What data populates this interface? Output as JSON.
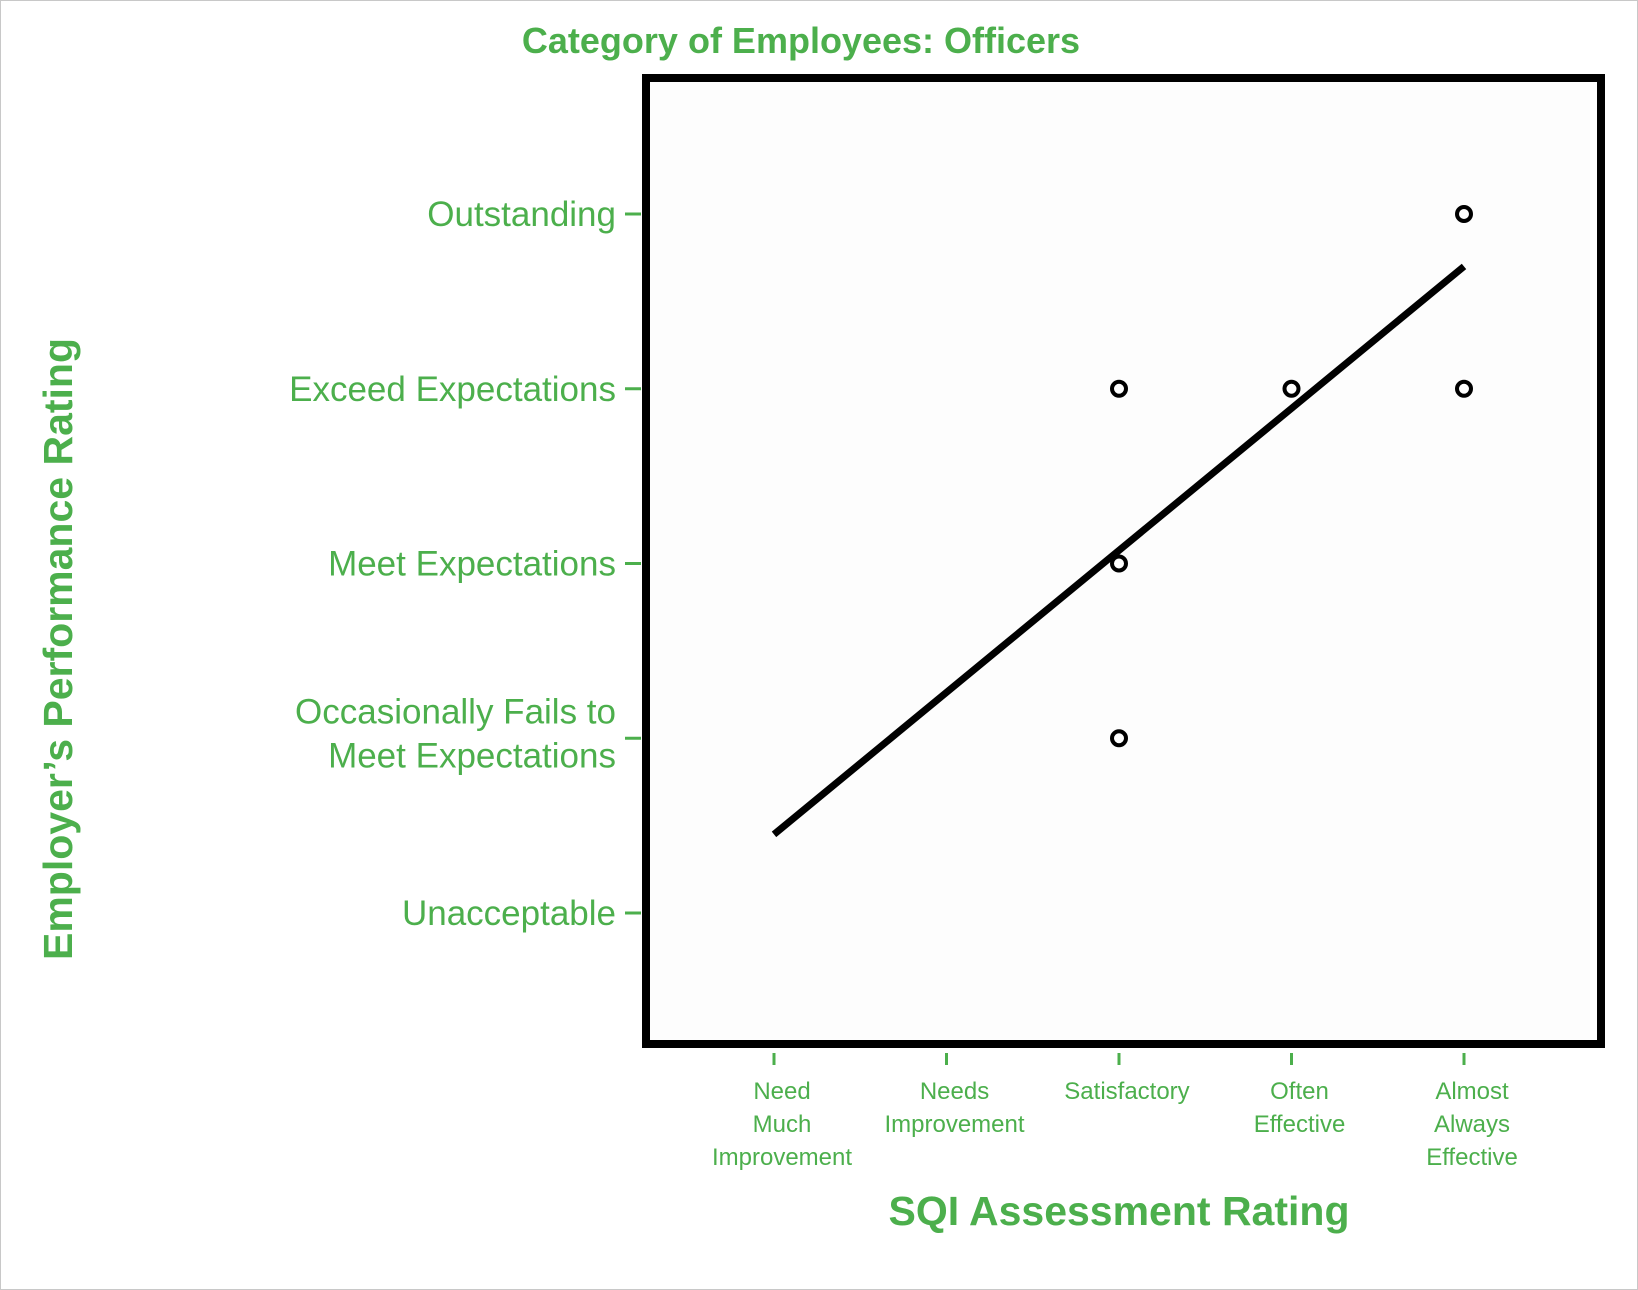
{
  "chart_data": {
    "type": "scatter",
    "title": "Category of Employees: Officers",
    "xlabel": "SQI Assessment Rating",
    "ylabel": "Employer’s Performance Rating",
    "x_categories": [
      [
        "Need",
        "Much",
        "Improvement"
      ],
      [
        "Needs",
        "Improvement"
      ],
      [
        "Satisfactory"
      ],
      [
        "Often",
        "Effective"
      ],
      [
        "Almost",
        "Always",
        "Effective"
      ]
    ],
    "y_categories": [
      [
        "Unacceptable"
      ],
      [
        "Occasionally Fails to",
        "Meet Expectations"
      ],
      [
        "Meet Expectations"
      ],
      [
        "Exceed Expectations"
      ],
      [
        "Outstanding"
      ]
    ],
    "xlim": [
      1,
      5
    ],
    "ylim": [
      1,
      5
    ],
    "points": [
      {
        "x": 3,
        "y": 2
      },
      {
        "x": 3,
        "y": 3
      },
      {
        "x": 3,
        "y": 4
      },
      {
        "x": 4,
        "y": 4
      },
      {
        "x": 5,
        "y": 4
      },
      {
        "x": 5,
        "y": 5
      }
    ],
    "trend_line": {
      "x": [
        1,
        5
      ],
      "y": [
        1.45,
        4.7
      ]
    },
    "grid": false,
    "legend": "none"
  },
  "colors": {
    "text": "#4caf4c",
    "frame": "#000000",
    "marker": "#000000",
    "trend_line": "#000000"
  }
}
